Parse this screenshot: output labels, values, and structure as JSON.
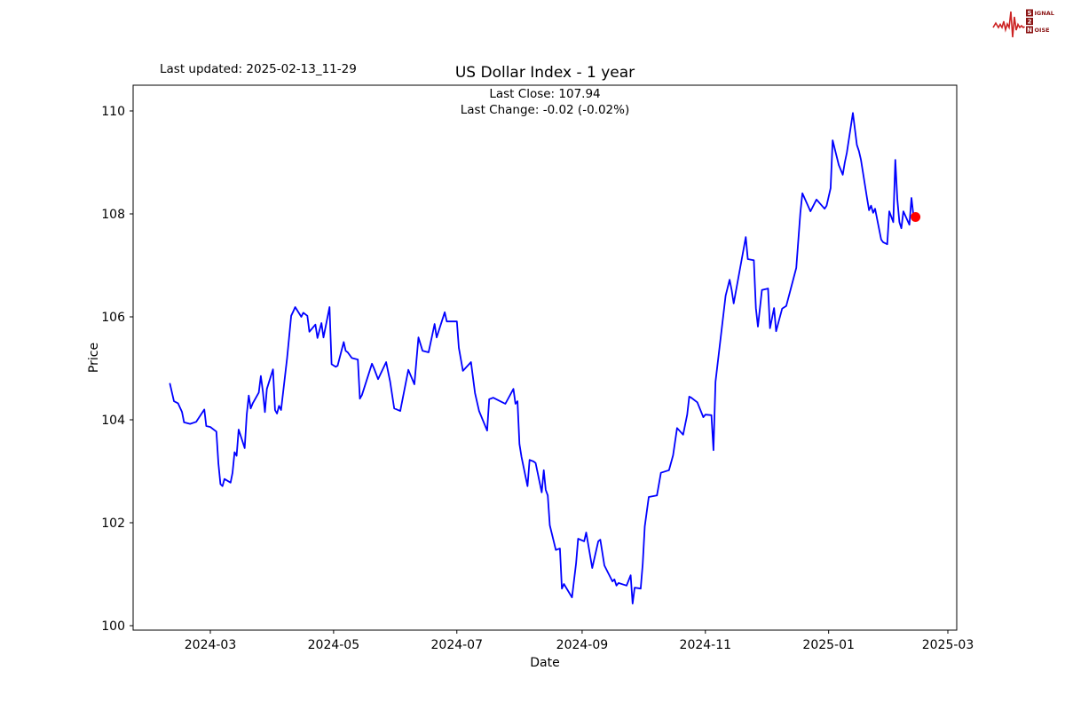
{
  "page": {
    "background": "#ffffff"
  },
  "header": {
    "last_updated": "Last updated: 2025-02-13_11-29",
    "logo": {
      "line1_initial": "S",
      "line1_rest": "IGNAL",
      "line2_initial": "2",
      "line3_initial": "N",
      "line3_rest": "OISE",
      "waveform_color": "#cc2222",
      "badge_color": "#8b1414",
      "text_color": "#8b1414"
    }
  },
  "chart_data": {
    "type": "line",
    "title": "US Dollar Index - 1 year",
    "subtitle_line1": "Last Close: 107.94",
    "subtitle_line2": "Last Change: -0.02 (-0.02%)",
    "xlabel": "Date",
    "ylabel": "Price",
    "x_tick_labels": [
      "2024-03",
      "2024-05",
      "2024-07",
      "2024-09",
      "2024-11",
      "2025-01",
      "2025-03"
    ],
    "y_ticks": [
      100,
      102,
      104,
      106,
      108,
      110
    ],
    "ylim": [
      99.9,
      110.5
    ],
    "grid": false,
    "legend": "none",
    "line_color": "#0000ff",
    "last_point_color": "#ff0000",
    "series": [
      {
        "name": "US Dollar Index",
        "points": [
          [
            "2024-02-10",
            104.7
          ],
          [
            "2024-02-12",
            104.36
          ],
          [
            "2024-02-14",
            104.32
          ],
          [
            "2024-02-16",
            104.15
          ],
          [
            "2024-02-17",
            103.95
          ],
          [
            "2024-02-20",
            103.92
          ],
          [
            "2024-02-23",
            103.96
          ],
          [
            "2024-02-27",
            104.2
          ],
          [
            "2024-02-28",
            103.88
          ],
          [
            "2024-03-01",
            103.86
          ],
          [
            "2024-03-04",
            103.77
          ],
          [
            "2024-03-05",
            103.15
          ],
          [
            "2024-03-06",
            102.75
          ],
          [
            "2024-03-07",
            102.71
          ],
          [
            "2024-03-08",
            102.85
          ],
          [
            "2024-03-11",
            102.78
          ],
          [
            "2024-03-12",
            102.97
          ],
          [
            "2024-03-13",
            103.37
          ],
          [
            "2024-03-14",
            103.3
          ],
          [
            "2024-03-15",
            103.81
          ],
          [
            "2024-03-18",
            103.45
          ],
          [
            "2024-03-19",
            104.1
          ],
          [
            "2024-03-20",
            104.47
          ],
          [
            "2024-03-21",
            104.22
          ],
          [
            "2024-03-22",
            104.32
          ],
          [
            "2024-03-25",
            104.53
          ],
          [
            "2024-03-26",
            104.85
          ],
          [
            "2024-03-27",
            104.55
          ],
          [
            "2024-03-28",
            104.15
          ],
          [
            "2024-03-29",
            104.6
          ],
          [
            "2024-04-01",
            104.98
          ],
          [
            "2024-04-02",
            104.19
          ],
          [
            "2024-04-03",
            104.12
          ],
          [
            "2024-04-04",
            104.27
          ],
          [
            "2024-04-05",
            104.19
          ],
          [
            "2024-04-08",
            105.2
          ],
          [
            "2024-04-10",
            106.02
          ],
          [
            "2024-04-11",
            106.1
          ],
          [
            "2024-04-12",
            106.19
          ],
          [
            "2024-04-15",
            106.0
          ],
          [
            "2024-04-16",
            106.08
          ],
          [
            "2024-04-18",
            106.02
          ],
          [
            "2024-04-19",
            105.71
          ],
          [
            "2024-04-22",
            105.85
          ],
          [
            "2024-04-23",
            105.59
          ],
          [
            "2024-04-25",
            105.88
          ],
          [
            "2024-04-26",
            105.6
          ],
          [
            "2024-04-29",
            106.19
          ],
          [
            "2024-04-30",
            105.08
          ],
          [
            "2024-05-02",
            105.03
          ],
          [
            "2024-05-03",
            105.05
          ],
          [
            "2024-05-06",
            105.51
          ],
          [
            "2024-05-07",
            105.34
          ],
          [
            "2024-05-08",
            105.31
          ],
          [
            "2024-05-10",
            105.2
          ],
          [
            "2024-05-13",
            105.17
          ],
          [
            "2024-05-14",
            104.41
          ],
          [
            "2024-05-15",
            104.48
          ],
          [
            "2024-05-20",
            105.09
          ],
          [
            "2024-05-21",
            105.0
          ],
          [
            "2024-05-23",
            104.79
          ],
          [
            "2024-05-27",
            105.12
          ],
          [
            "2024-05-29",
            104.74
          ],
          [
            "2024-05-31",
            104.22
          ],
          [
            "2024-06-03",
            104.17
          ],
          [
            "2024-06-07",
            104.97
          ],
          [
            "2024-06-10",
            104.69
          ],
          [
            "2024-06-12",
            105.6
          ],
          [
            "2024-06-14",
            105.34
          ],
          [
            "2024-06-17",
            105.31
          ],
          [
            "2024-06-20",
            105.86
          ],
          [
            "2024-06-21",
            105.6
          ],
          [
            "2024-06-25",
            106.09
          ],
          [
            "2024-06-26",
            105.91
          ],
          [
            "2024-07-01",
            105.91
          ],
          [
            "2024-07-02",
            105.4
          ],
          [
            "2024-07-04",
            104.95
          ],
          [
            "2024-07-08",
            105.12
          ],
          [
            "2024-07-10",
            104.52
          ],
          [
            "2024-07-12",
            104.17
          ],
          [
            "2024-07-16",
            103.79
          ],
          [
            "2024-07-17",
            104.4
          ],
          [
            "2024-07-19",
            104.43
          ],
          [
            "2024-07-23",
            104.35
          ],
          [
            "2024-07-25",
            104.31
          ],
          [
            "2024-07-29",
            104.6
          ],
          [
            "2024-07-30",
            104.31
          ],
          [
            "2024-07-31",
            104.36
          ],
          [
            "2024-08-01",
            103.53
          ],
          [
            "2024-08-02",
            103.28
          ],
          [
            "2024-08-05",
            102.71
          ],
          [
            "2024-08-06",
            103.22
          ],
          [
            "2024-08-08",
            103.19
          ],
          [
            "2024-08-09",
            103.16
          ],
          [
            "2024-08-12",
            102.59
          ],
          [
            "2024-08-13",
            103.02
          ],
          [
            "2024-08-14",
            102.64
          ],
          [
            "2024-08-15",
            102.53
          ],
          [
            "2024-08-16",
            101.95
          ],
          [
            "2024-08-19",
            101.47
          ],
          [
            "2024-08-21",
            101.5
          ],
          [
            "2024-08-22",
            100.72
          ],
          [
            "2024-08-23",
            100.81
          ],
          [
            "2024-08-27",
            100.55
          ],
          [
            "2024-08-29",
            101.21
          ],
          [
            "2024-08-30",
            101.69
          ],
          [
            "2024-09-02",
            101.64
          ],
          [
            "2024-09-03",
            101.81
          ],
          [
            "2024-09-06",
            101.12
          ],
          [
            "2024-09-09",
            101.64
          ],
          [
            "2024-09-10",
            101.67
          ],
          [
            "2024-09-12",
            101.17
          ],
          [
            "2024-09-16",
            100.86
          ],
          [
            "2024-09-17",
            100.9
          ],
          [
            "2024-09-18",
            100.78
          ],
          [
            "2024-09-19",
            100.83
          ],
          [
            "2024-09-23",
            100.78
          ],
          [
            "2024-09-25",
            100.98
          ],
          [
            "2024-09-26",
            100.43
          ],
          [
            "2024-09-27",
            100.74
          ],
          [
            "2024-09-30",
            100.72
          ],
          [
            "2024-10-01",
            101.2
          ],
          [
            "2024-10-02",
            101.93
          ],
          [
            "2024-10-04",
            102.5
          ],
          [
            "2024-10-08",
            102.53
          ],
          [
            "2024-10-10",
            102.97
          ],
          [
            "2024-10-14",
            103.02
          ],
          [
            "2024-10-16",
            103.31
          ],
          [
            "2024-10-18",
            103.84
          ],
          [
            "2024-10-21",
            103.71
          ],
          [
            "2024-10-23",
            104.1
          ],
          [
            "2024-10-24",
            104.45
          ],
          [
            "2024-10-25",
            104.43
          ],
          [
            "2024-10-28",
            104.34
          ],
          [
            "2024-10-31",
            104.05
          ],
          [
            "2024-11-01",
            104.1
          ],
          [
            "2024-11-04",
            104.09
          ],
          [
            "2024-11-05",
            103.41
          ],
          [
            "2024-11-06",
            104.74
          ],
          [
            "2024-11-08",
            105.4
          ],
          [
            "2024-11-11",
            106.41
          ],
          [
            "2024-11-13",
            106.72
          ],
          [
            "2024-11-14",
            106.52
          ],
          [
            "2024-11-15",
            106.26
          ],
          [
            "2024-11-21",
            107.55
          ],
          [
            "2024-11-22",
            107.12
          ],
          [
            "2024-11-25",
            107.1
          ],
          [
            "2024-11-26",
            106.17
          ],
          [
            "2024-11-27",
            105.81
          ],
          [
            "2024-11-29",
            106.52
          ],
          [
            "2024-12-02",
            106.55
          ],
          [
            "2024-12-03",
            105.78
          ],
          [
            "2024-12-05",
            106.17
          ],
          [
            "2024-12-06",
            105.72
          ],
          [
            "2024-12-09",
            106.16
          ],
          [
            "2024-12-11",
            106.21
          ],
          [
            "2024-12-16",
            106.95
          ],
          [
            "2024-12-18",
            108.02
          ],
          [
            "2024-12-19",
            108.4
          ],
          [
            "2024-12-23",
            108.05
          ],
          [
            "2024-12-26",
            108.28
          ],
          [
            "2024-12-30",
            108.1
          ],
          [
            "2024-12-31",
            108.16
          ],
          [
            "2025-01-02",
            108.5
          ],
          [
            "2025-01-03",
            109.43
          ],
          [
            "2025-01-06",
            108.95
          ],
          [
            "2025-01-08",
            108.76
          ],
          [
            "2025-01-09",
            109.0
          ],
          [
            "2025-01-10",
            109.19
          ],
          [
            "2025-01-13",
            109.96
          ],
          [
            "2025-01-15",
            109.34
          ],
          [
            "2025-01-16",
            109.22
          ],
          [
            "2025-01-17",
            109.05
          ],
          [
            "2025-01-20",
            108.31
          ],
          [
            "2025-01-21",
            108.07
          ],
          [
            "2025-01-22",
            108.16
          ],
          [
            "2025-01-23",
            108.02
          ],
          [
            "2025-01-24",
            108.1
          ],
          [
            "2025-01-27",
            107.5
          ],
          [
            "2025-01-28",
            107.45
          ],
          [
            "2025-01-29",
            107.43
          ],
          [
            "2025-01-30",
            107.41
          ],
          [
            "2025-01-31",
            108.05
          ],
          [
            "2025-02-02",
            107.84
          ],
          [
            "2025-02-03",
            109.05
          ],
          [
            "2025-02-04",
            108.28
          ],
          [
            "2025-02-05",
            107.84
          ],
          [
            "2025-02-06",
            107.72
          ],
          [
            "2025-02-07",
            108.05
          ],
          [
            "2025-02-10",
            107.79
          ],
          [
            "2025-02-11",
            108.31
          ],
          [
            "2025-02-12",
            107.96
          ],
          [
            "2025-02-13",
            107.94
          ]
        ]
      }
    ],
    "last_close": 107.94,
    "last_change": -0.02,
    "last_change_pct": "-0.02%"
  }
}
